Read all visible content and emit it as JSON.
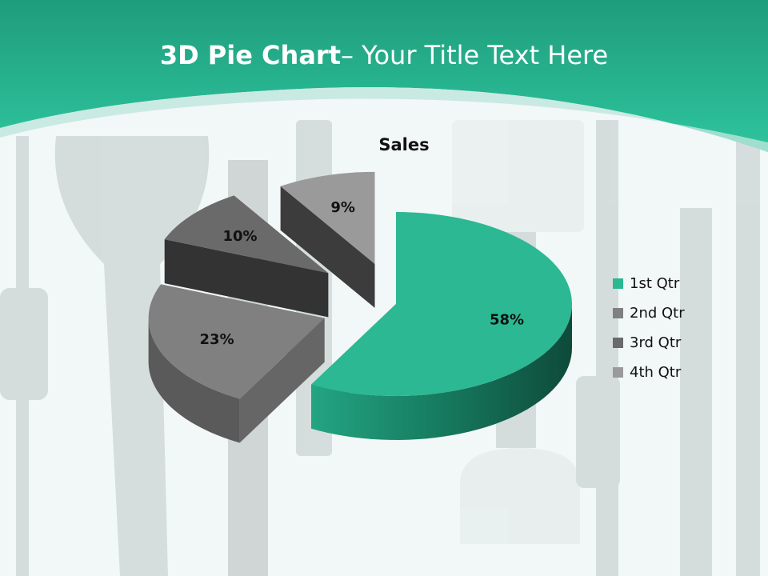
{
  "slide": {
    "title_bold": "3D Pie Chart",
    "title_rest": "– Your Title Text Here"
  },
  "colors": {
    "header": "#2bbf99",
    "slice1": "#2bb893",
    "slice2": "#808080",
    "slice3": "#6a6a6a",
    "slice4": "#9a9a9a"
  },
  "chart_data": {
    "type": "pie",
    "subtype": "3d-exploded",
    "title": "Sales",
    "categories": [
      "1st Qtr",
      "2nd Qtr",
      "3rd Qtr",
      "4th Qtr"
    ],
    "values": [
      58,
      23,
      10,
      9
    ],
    "data_labels": [
      "58%",
      "23%",
      "10%",
      "9%"
    ],
    "legend_position": "right"
  }
}
